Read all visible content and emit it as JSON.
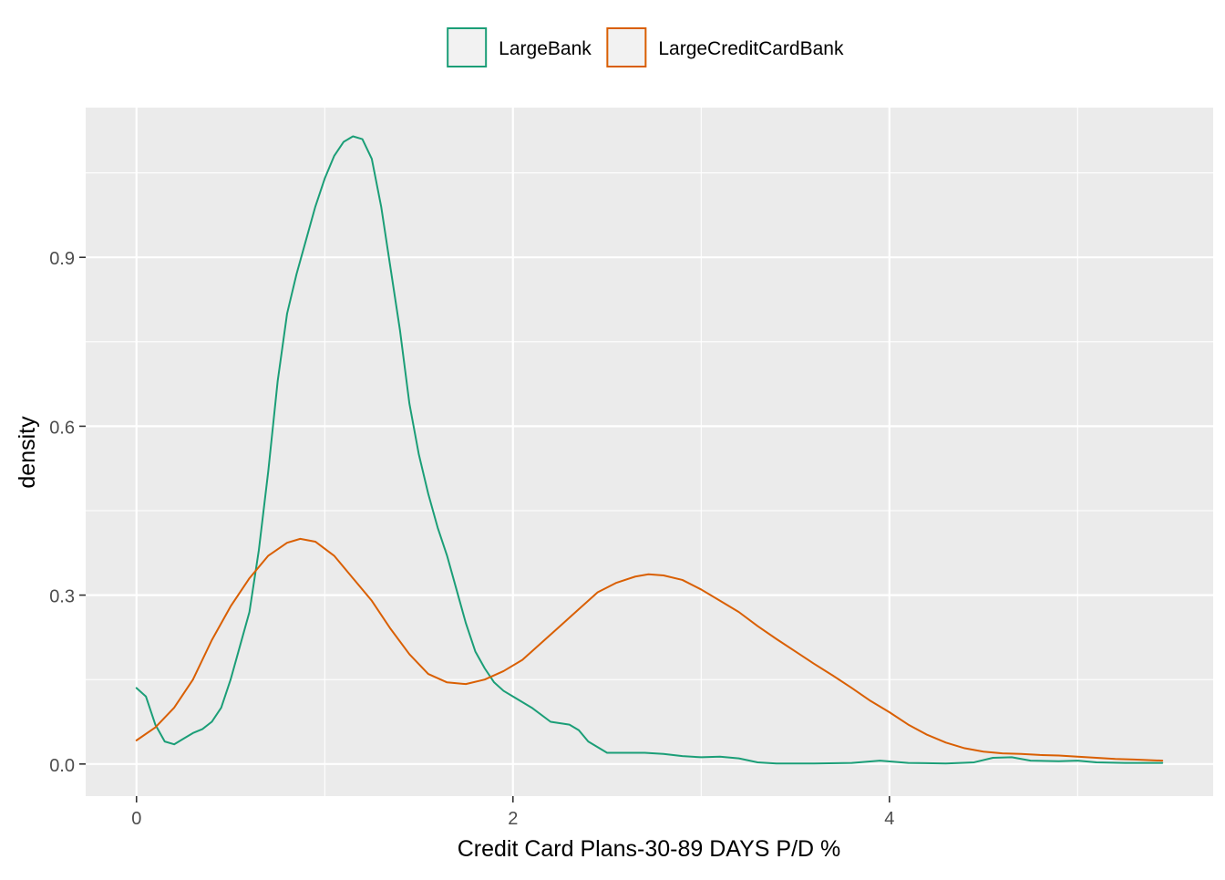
{
  "chart_data": {
    "type": "line",
    "title": "",
    "xlabel": "Credit Card Plans-30-89 DAYS P/D %",
    "ylabel": "density",
    "xlim": [
      -0.27,
      5.72
    ],
    "ylim": [
      -0.057,
      1.166
    ],
    "x_ticks": [
      0,
      2,
      4
    ],
    "x_tick_labels": [
      "0",
      "2",
      "4"
    ],
    "y_ticks": [
      0.0,
      0.3,
      0.6,
      0.9
    ],
    "y_tick_labels": [
      "0.0",
      "0.3",
      "0.6",
      "0.9"
    ],
    "grid": true,
    "legend_position": "top",
    "colors": {
      "panel": "#EBEBEB",
      "grid": "#FFFFFF",
      "text": "#4D4D4D",
      "legend_key_fill": "#F2F2F2"
    },
    "series": [
      {
        "name": "LargeBank",
        "color": "#1B9E77",
        "points": [
          [
            0.0,
            0.135
          ],
          [
            0.05,
            0.12
          ],
          [
            0.1,
            0.07
          ],
          [
            0.15,
            0.04
          ],
          [
            0.2,
            0.035
          ],
          [
            0.25,
            0.045
          ],
          [
            0.3,
            0.055
          ],
          [
            0.35,
            0.062
          ],
          [
            0.4,
            0.075
          ],
          [
            0.45,
            0.1
          ],
          [
            0.5,
            0.15
          ],
          [
            0.55,
            0.21
          ],
          [
            0.6,
            0.27
          ],
          [
            0.65,
            0.38
          ],
          [
            0.7,
            0.52
          ],
          [
            0.75,
            0.68
          ],
          [
            0.8,
            0.8
          ],
          [
            0.85,
            0.87
          ],
          [
            0.9,
            0.93
          ],
          [
            0.95,
            0.99
          ],
          [
            1.0,
            1.04
          ],
          [
            1.05,
            1.08
          ],
          [
            1.1,
            1.105
          ],
          [
            1.15,
            1.115
          ],
          [
            1.2,
            1.11
          ],
          [
            1.25,
            1.075
          ],
          [
            1.3,
            0.99
          ],
          [
            1.35,
            0.88
          ],
          [
            1.4,
            0.77
          ],
          [
            1.45,
            0.64
          ],
          [
            1.5,
            0.55
          ],
          [
            1.55,
            0.48
          ],
          [
            1.6,
            0.42
          ],
          [
            1.65,
            0.37
          ],
          [
            1.7,
            0.31
          ],
          [
            1.75,
            0.25
          ],
          [
            1.8,
            0.2
          ],
          [
            1.85,
            0.17
          ],
          [
            1.9,
            0.145
          ],
          [
            1.95,
            0.13
          ],
          [
            2.0,
            0.12
          ],
          [
            2.1,
            0.1
          ],
          [
            2.2,
            0.075
          ],
          [
            2.3,
            0.07
          ],
          [
            2.35,
            0.06
          ],
          [
            2.4,
            0.04
          ],
          [
            2.5,
            0.02
          ],
          [
            2.6,
            0.02
          ],
          [
            2.7,
            0.02
          ],
          [
            2.8,
            0.018
          ],
          [
            2.9,
            0.014
          ],
          [
            3.0,
            0.012
          ],
          [
            3.1,
            0.013
          ],
          [
            3.2,
            0.01
          ],
          [
            3.3,
            0.003
          ],
          [
            3.4,
            0.001
          ],
          [
            3.6,
            0.001
          ],
          [
            3.8,
            0.002
          ],
          [
            3.95,
            0.006
          ],
          [
            4.1,
            0.002
          ],
          [
            4.3,
            0.001
          ],
          [
            4.45,
            0.003
          ],
          [
            4.55,
            0.011
          ],
          [
            4.65,
            0.012
          ],
          [
            4.75,
            0.006
          ],
          [
            4.9,
            0.005
          ],
          [
            5.0,
            0.006
          ],
          [
            5.1,
            0.003
          ],
          [
            5.25,
            0.002
          ],
          [
            5.45,
            0.002
          ]
        ]
      },
      {
        "name": "LargeCreditCardBank",
        "color": "#D95F02",
        "points": [
          [
            0.0,
            0.042
          ],
          [
            0.1,
            0.065
          ],
          [
            0.2,
            0.1
          ],
          [
            0.3,
            0.15
          ],
          [
            0.4,
            0.22
          ],
          [
            0.5,
            0.28
          ],
          [
            0.6,
            0.33
          ],
          [
            0.7,
            0.37
          ],
          [
            0.8,
            0.393
          ],
          [
            0.87,
            0.4
          ],
          [
            0.95,
            0.395
          ],
          [
            1.05,
            0.37
          ],
          [
            1.15,
            0.33
          ],
          [
            1.25,
            0.29
          ],
          [
            1.35,
            0.24
          ],
          [
            1.45,
            0.195
          ],
          [
            1.55,
            0.16
          ],
          [
            1.65,
            0.145
          ],
          [
            1.75,
            0.142
          ],
          [
            1.85,
            0.15
          ],
          [
            1.95,
            0.165
          ],
          [
            2.05,
            0.185
          ],
          [
            2.15,
            0.215
          ],
          [
            2.25,
            0.245
          ],
          [
            2.35,
            0.275
          ],
          [
            2.45,
            0.305
          ],
          [
            2.55,
            0.322
          ],
          [
            2.65,
            0.333
          ],
          [
            2.72,
            0.337
          ],
          [
            2.8,
            0.335
          ],
          [
            2.9,
            0.327
          ],
          [
            3.0,
            0.31
          ],
          [
            3.1,
            0.29
          ],
          [
            3.2,
            0.27
          ],
          [
            3.3,
            0.245
          ],
          [
            3.4,
            0.222
          ],
          [
            3.5,
            0.2
          ],
          [
            3.6,
            0.178
          ],
          [
            3.7,
            0.157
          ],
          [
            3.8,
            0.135
          ],
          [
            3.9,
            0.112
          ],
          [
            4.0,
            0.092
          ],
          [
            4.1,
            0.07
          ],
          [
            4.2,
            0.052
          ],
          [
            4.3,
            0.038
          ],
          [
            4.4,
            0.028
          ],
          [
            4.5,
            0.022
          ],
          [
            4.6,
            0.019
          ],
          [
            4.7,
            0.018
          ],
          [
            4.8,
            0.016
          ],
          [
            4.9,
            0.015
          ],
          [
            5.0,
            0.013
          ],
          [
            5.1,
            0.011
          ],
          [
            5.2,
            0.009
          ],
          [
            5.3,
            0.008
          ],
          [
            5.45,
            0.006
          ]
        ]
      }
    ]
  }
}
